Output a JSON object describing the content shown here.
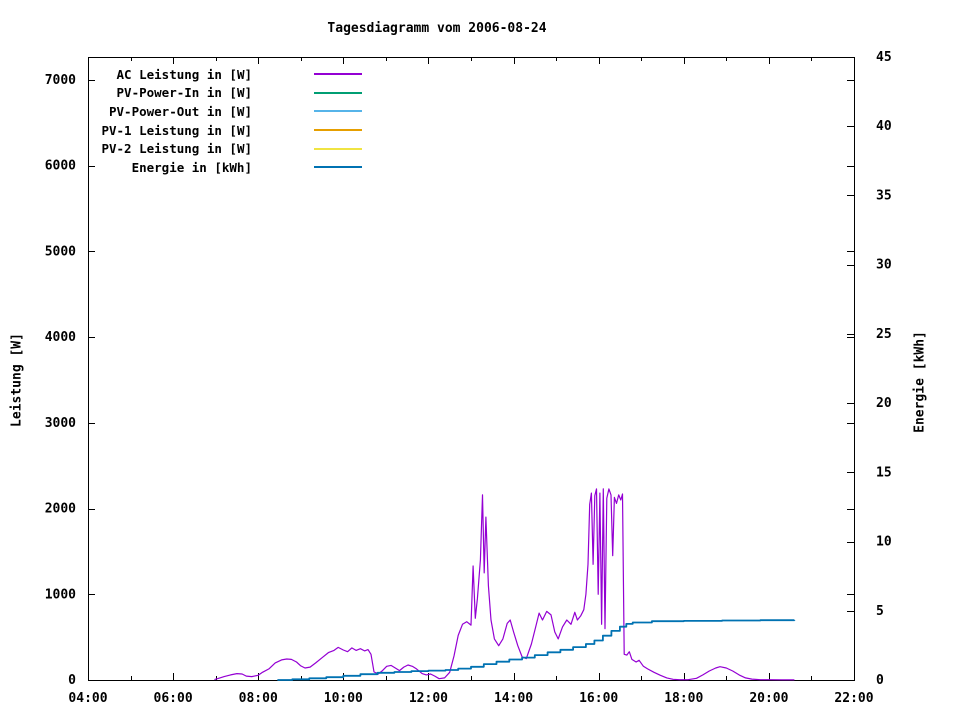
{
  "chart_data": {
    "type": "line",
    "title": "Tagesdiagramm vom 2006-08-24",
    "y1_label": "Leistung [W]",
    "y2_label": "Energie [kWh]",
    "x_range_hours": [
      4,
      22
    ],
    "y1_range": [
      0,
      7270
    ],
    "y2_range": [
      0,
      45
    ],
    "grid": false,
    "legend_position": "top-left",
    "x_ticks": [
      {
        "h": 4,
        "label": "04:00"
      },
      {
        "h": 6,
        "label": "06:00"
      },
      {
        "h": 8,
        "label": "08:00"
      },
      {
        "h": 10,
        "label": "10:00"
      },
      {
        "h": 12,
        "label": "12:00"
      },
      {
        "h": 14,
        "label": "14:00"
      },
      {
        "h": 16,
        "label": "16:00"
      },
      {
        "h": 18,
        "label": "18:00"
      },
      {
        "h": 20,
        "label": "20:00"
      },
      {
        "h": 22,
        "label": "22:00"
      }
    ],
    "x_minor_tick_hours": [
      5,
      7,
      9,
      11,
      13,
      15,
      17,
      19,
      21
    ],
    "y1_ticks": [
      {
        "v": 0,
        "label": "0"
      },
      {
        "v": 1000,
        "label": "1000"
      },
      {
        "v": 2000,
        "label": "2000"
      },
      {
        "v": 3000,
        "label": "3000"
      },
      {
        "v": 4000,
        "label": "4000"
      },
      {
        "v": 5000,
        "label": "5000"
      },
      {
        "v": 6000,
        "label": "6000"
      },
      {
        "v": 7000,
        "label": "7000"
      }
    ],
    "y2_ticks": [
      {
        "v": 0,
        "label": "0"
      },
      {
        "v": 5,
        "label": "5"
      },
      {
        "v": 10,
        "label": "10"
      },
      {
        "v": 15,
        "label": "15"
      },
      {
        "v": 20,
        "label": "20"
      },
      {
        "v": 25,
        "label": "25"
      },
      {
        "v": 30,
        "label": "30"
      },
      {
        "v": 35,
        "label": "35"
      },
      {
        "v": 40,
        "label": "40"
      },
      {
        "v": 45,
        "label": "45"
      }
    ],
    "series": [
      {
        "key": "ac",
        "name": "AC Leistung in [W]",
        "color": "#9400d3",
        "axis": "y1",
        "step": false,
        "points": [
          [
            6.97,
            5
          ],
          [
            7.1,
            25
          ],
          [
            7.2,
            40
          ],
          [
            7.35,
            60
          ],
          [
            7.5,
            75
          ],
          [
            7.62,
            70
          ],
          [
            7.72,
            45
          ],
          [
            7.85,
            40
          ],
          [
            8.0,
            55
          ],
          [
            8.1,
            90
          ],
          [
            8.25,
            130
          ],
          [
            8.4,
            200
          ],
          [
            8.55,
            235
          ],
          [
            8.67,
            245
          ],
          [
            8.78,
            240
          ],
          [
            8.9,
            210
          ],
          [
            9.0,
            165
          ],
          [
            9.1,
            140
          ],
          [
            9.22,
            150
          ],
          [
            9.35,
            200
          ],
          [
            9.5,
            260
          ],
          [
            9.65,
            320
          ],
          [
            9.78,
            345
          ],
          [
            9.88,
            380
          ],
          [
            10.0,
            350
          ],
          [
            10.1,
            330
          ],
          [
            10.2,
            375
          ],
          [
            10.3,
            345
          ],
          [
            10.4,
            365
          ],
          [
            10.5,
            340
          ],
          [
            10.58,
            355
          ],
          [
            10.65,
            300
          ],
          [
            10.72,
            95
          ],
          [
            10.82,
            70
          ],
          [
            10.92,
            110
          ],
          [
            11.02,
            160
          ],
          [
            11.12,
            170
          ],
          [
            11.22,
            140
          ],
          [
            11.32,
            110
          ],
          [
            11.42,
            150
          ],
          [
            11.52,
            175
          ],
          [
            11.62,
            160
          ],
          [
            11.72,
            130
          ],
          [
            11.85,
            75
          ],
          [
            11.95,
            60
          ],
          [
            12.05,
            70
          ],
          [
            12.15,
            45
          ],
          [
            12.25,
            15
          ],
          [
            12.38,
            25
          ],
          [
            12.5,
            90
          ],
          [
            12.6,
            280
          ],
          [
            12.7,
            520
          ],
          [
            12.8,
            650
          ],
          [
            12.9,
            680
          ],
          [
            13.0,
            640
          ],
          [
            13.05,
            1330
          ],
          [
            13.1,
            720
          ],
          [
            13.15,
            950
          ],
          [
            13.22,
            1400
          ],
          [
            13.27,
            2160
          ],
          [
            13.31,
            1250
          ],
          [
            13.35,
            1900
          ],
          [
            13.41,
            1100
          ],
          [
            13.47,
            700
          ],
          [
            13.55,
            480
          ],
          [
            13.65,
            400
          ],
          [
            13.75,
            480
          ],
          [
            13.85,
            660
          ],
          [
            13.92,
            700
          ],
          [
            14.0,
            560
          ],
          [
            14.1,
            400
          ],
          [
            14.2,
            270
          ],
          [
            14.3,
            250
          ],
          [
            14.42,
            420
          ],
          [
            14.52,
            620
          ],
          [
            14.6,
            780
          ],
          [
            14.68,
            700
          ],
          [
            14.78,
            800
          ],
          [
            14.88,
            760
          ],
          [
            14.97,
            560
          ],
          [
            15.05,
            480
          ],
          [
            15.15,
            620
          ],
          [
            15.25,
            700
          ],
          [
            15.35,
            650
          ],
          [
            15.44,
            790
          ],
          [
            15.5,
            700
          ],
          [
            15.58,
            750
          ],
          [
            15.65,
            820
          ],
          [
            15.7,
            1000
          ],
          [
            15.75,
            1350
          ],
          [
            15.79,
            2050
          ],
          [
            15.83,
            2180
          ],
          [
            15.87,
            1350
          ],
          [
            15.91,
            2150
          ],
          [
            15.95,
            2230
          ],
          [
            15.99,
            1000
          ],
          [
            16.03,
            2180
          ],
          [
            16.07,
            650
          ],
          [
            16.11,
            2230
          ],
          [
            16.15,
            600
          ],
          [
            16.19,
            2120
          ],
          [
            16.24,
            2230
          ],
          [
            16.29,
            2160
          ],
          [
            16.33,
            1450
          ],
          [
            16.37,
            2130
          ],
          [
            16.42,
            2060
          ],
          [
            16.47,
            2160
          ],
          [
            16.52,
            2100
          ],
          [
            16.56,
            2170
          ],
          [
            16.6,
            300
          ],
          [
            16.66,
            290
          ],
          [
            16.72,
            330
          ],
          [
            16.78,
            240
          ],
          [
            16.88,
            210
          ],
          [
            16.95,
            230
          ],
          [
            17.05,
            160
          ],
          [
            17.15,
            130
          ],
          [
            17.3,
            90
          ],
          [
            17.45,
            55
          ],
          [
            17.6,
            25
          ],
          [
            17.75,
            8
          ],
          [
            17.9,
            3
          ],
          [
            18.1,
            4
          ],
          [
            18.3,
            20
          ],
          [
            18.45,
            60
          ],
          [
            18.6,
            105
          ],
          [
            18.75,
            140
          ],
          [
            18.85,
            155
          ],
          [
            19.0,
            140
          ],
          [
            19.15,
            105
          ],
          [
            19.3,
            60
          ],
          [
            19.45,
            25
          ],
          [
            19.6,
            10
          ],
          [
            19.8,
            4
          ],
          [
            20.0,
            3
          ],
          [
            20.3,
            2
          ],
          [
            20.6,
            2
          ]
        ]
      },
      {
        "key": "pv-in",
        "name": "PV-Power-In in [W]",
        "color": "#009e73",
        "axis": "y1",
        "step": false,
        "points": []
      },
      {
        "key": "pv-out",
        "name": "PV-Power-Out in [W]",
        "color": "#56b4e9",
        "axis": "y1",
        "step": false,
        "points": []
      },
      {
        "key": "pv1",
        "name": "PV-1 Leistung in [W]",
        "color": "#e69f00",
        "axis": "y1",
        "step": false,
        "points": []
      },
      {
        "key": "pv2",
        "name": "PV-2 Leistung in [W]",
        "color": "#f0e442",
        "axis": "y1",
        "step": false,
        "points": []
      },
      {
        "key": "energie",
        "name": "Energie in [kWh]",
        "color": "#0072b2",
        "axis": "y2",
        "step": true,
        "points": [
          [
            8.45,
            0.0
          ],
          [
            8.8,
            0.05
          ],
          [
            9.2,
            0.12
          ],
          [
            9.6,
            0.2
          ],
          [
            10.0,
            0.3
          ],
          [
            10.4,
            0.42
          ],
          [
            10.8,
            0.52
          ],
          [
            11.2,
            0.58
          ],
          [
            11.6,
            0.64
          ],
          [
            12.0,
            0.68
          ],
          [
            12.4,
            0.72
          ],
          [
            12.7,
            0.82
          ],
          [
            13.0,
            0.95
          ],
          [
            13.3,
            1.15
          ],
          [
            13.6,
            1.32
          ],
          [
            13.9,
            1.48
          ],
          [
            14.2,
            1.62
          ],
          [
            14.5,
            1.8
          ],
          [
            14.8,
            2.0
          ],
          [
            15.1,
            2.18
          ],
          [
            15.4,
            2.38
          ],
          [
            15.7,
            2.6
          ],
          [
            15.9,
            2.85
          ],
          [
            16.1,
            3.2
          ],
          [
            16.3,
            3.55
          ],
          [
            16.5,
            3.85
          ],
          [
            16.65,
            4.05
          ],
          [
            16.8,
            4.15
          ],
          [
            17.25,
            4.25
          ],
          [
            18.0,
            4.27
          ],
          [
            18.9,
            4.3
          ],
          [
            19.8,
            4.32
          ],
          [
            20.6,
            4.33
          ]
        ]
      }
    ]
  }
}
